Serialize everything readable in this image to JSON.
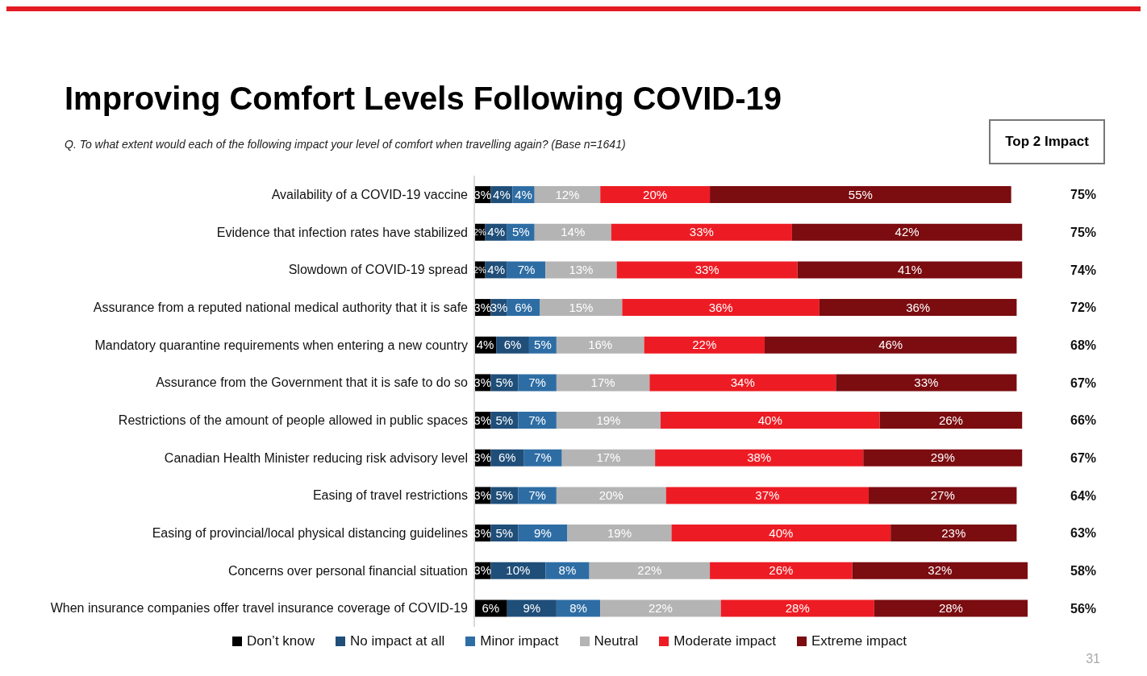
{
  "chart_data": {
    "type": "bar",
    "orientation": "horizontal",
    "stacked": true,
    "title": "Improving Comfort Levels Following COVID-19",
    "subtitle": "Q. To what extent would each of the following impact your level of comfort when travelling again? (Base n=1641)",
    "legend": "bottom",
    "grid": false,
    "tick_labels": "y",
    "categories": [
      "Availability of a COVID-19 vaccine",
      "Evidence that infection rates have stabilized",
      "Slowdown of COVID-19 spread",
      "Assurance from a reputed national medical authority that it is safe",
      "Mandatory quarantine requirements when entering a new country",
      "Assurance from the Government that it is safe to do so",
      "Restrictions of the amount of people allowed in public spaces",
      "Canadian Health Minister reducing risk advisory level",
      "Easing of travel restrictions",
      "Easing of provincial/local physical distancing guidelines",
      "Concerns over personal financial situation",
      "When insurance companies offer travel insurance coverage of COVID-19"
    ],
    "series": [
      {
        "name": "Don’t know",
        "color": "#000000",
        "values": [
          3,
          2,
          2,
          3,
          4,
          3,
          3,
          3,
          3,
          3,
          3,
          6
        ],
        "value_labels": [
          "3%",
          "2%",
          "2%",
          "3%",
          "4%",
          "3%",
          "3%",
          "3%",
          "3%",
          "3%",
          "3%",
          "6%"
        ]
      },
      {
        "name": "No impact at all",
        "color": "#1f4e79",
        "values": [
          4,
          4,
          4,
          3,
          6,
          5,
          5,
          6,
          5,
          5,
          10,
          9
        ],
        "value_labels": [
          "4%",
          "4%",
          "4%",
          "3%",
          "6%",
          "5%",
          "5%",
          "6%",
          "5%",
          "5%",
          "10%",
          "9%"
        ]
      },
      {
        "name": "Minor impact",
        "color": "#2e6da4",
        "values": [
          4,
          5,
          7,
          6,
          5,
          7,
          7,
          7,
          7,
          9,
          8,
          8
        ],
        "value_labels": [
          "4%",
          "5%",
          "7%",
          "6%",
          "5%",
          "7%",
          "7%",
          "7%",
          "7%",
          "9%",
          "8%",
          "8%"
        ]
      },
      {
        "name": "Neutral",
        "color": "#b4b4b4",
        "values": [
          12,
          14,
          13,
          15,
          16,
          17,
          19,
          17,
          20,
          19,
          22,
          22
        ],
        "value_labels": [
          "12%",
          "14%",
          "13%",
          "15%",
          "16%",
          "17%",
          "19%",
          "17%",
          "20%",
          "19%",
          "22%",
          "22%"
        ]
      },
      {
        "name": "Moderate impact",
        "color": "#ed1c24",
        "values": [
          20,
          33,
          33,
          36,
          22,
          34,
          40,
          38,
          37,
          40,
          26,
          28
        ],
        "value_labels": [
          "20%",
          "33%",
          "33%",
          "36%",
          "22%",
          "34%",
          "40%",
          "38%",
          "37%",
          "40%",
          "26%",
          "28%"
        ]
      },
      {
        "name": "Extreme impact",
        "color": "#7b0c10",
        "values": [
          55,
          42,
          41,
          36,
          46,
          33,
          26,
          29,
          27,
          23,
          32,
          28
        ],
        "value_labels": [
          "55%",
          "42%",
          "41%",
          "36%",
          "46%",
          "33%",
          "26%",
          "29%",
          "27%",
          "23%",
          "32%",
          "28%"
        ]
      }
    ],
    "annotations": [
      "Top 2 Impact",
      "75%",
      "75%",
      "74%",
      "72%",
      "68%",
      "67%",
      "66%",
      "67%",
      "64%",
      "63%",
      "58%",
      "56%",
      "31"
    ]
  }
}
